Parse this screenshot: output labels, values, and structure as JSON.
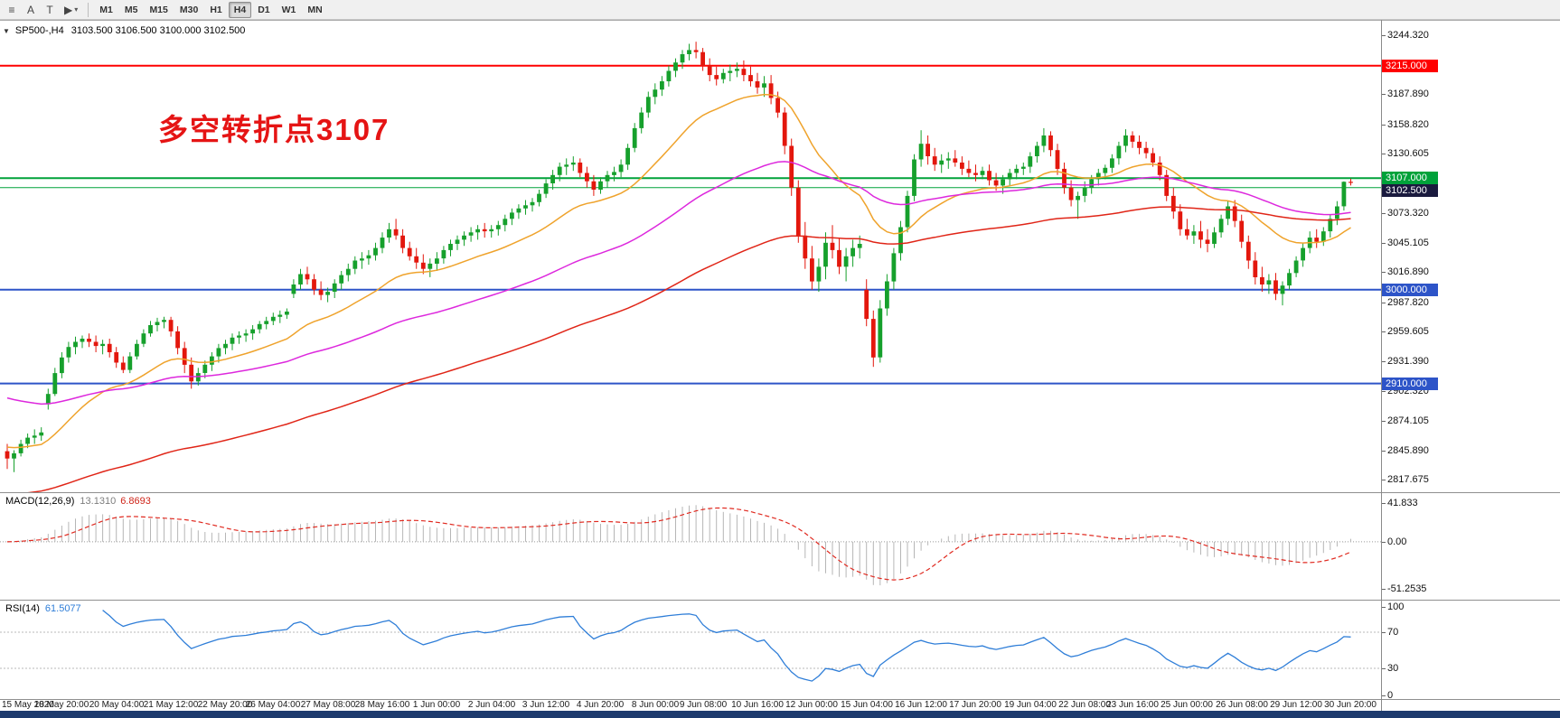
{
  "icons": {
    "expand_arrow": "▼",
    "caret_down": "▾"
  },
  "toolbar": {
    "tools": [
      {
        "name": "chart-menu-icon",
        "glyph": "≡"
      },
      {
        "name": "annotation-tool-icon",
        "glyph": "A"
      },
      {
        "name": "text-tool-icon",
        "glyph": "T"
      },
      {
        "name": "cursor-tool-icon",
        "glyph": "▶",
        "caret": "▾"
      }
    ],
    "timeframes": [
      "M1",
      "M5",
      "M15",
      "M30",
      "H1",
      "H4",
      "D1",
      "W1",
      "MN"
    ],
    "active_timeframe": "H4"
  },
  "chart": {
    "symbol_label": "SP500-,H4",
    "ohlc_label": "3103.500 3106.500 3100.000 3102.500",
    "annotation": {
      "text": "多空转折点3107",
      "color": "#e51414"
    },
    "colors": {
      "bull": "#16a02c",
      "bear": "#e3170d",
      "ma_fast": "#efa32c",
      "ma_mid": "#dd28dd",
      "ma_slow": "#e02517",
      "line_red": "#ff0000",
      "line_green": "#00a23a",
      "line_blue": "#2d54c8",
      "macd_hist": "#b6b6b6",
      "macd_signal": "#e02a20",
      "rsi_line": "#2f7ed8",
      "taskbar": "#1d3a6d"
    },
    "scale": {
      "pmin": 2810,
      "pmax": 3252
    },
    "hlines": [
      {
        "price": 3215.0,
        "color": "#ff0000",
        "w": 2
      },
      {
        "price": 3107.0,
        "color": "#00a23a",
        "w": 2
      },
      {
        "price": 3098.0,
        "color": "#00a23a",
        "w": 1
      },
      {
        "price": 3000.0,
        "color": "#2d54c8",
        "w": 2
      },
      {
        "price": 2910.0,
        "color": "#2d54c8",
        "w": 2
      }
    ],
    "price_axis": {
      "labels": [
        "3244.320",
        "3187.890",
        "3158.820",
        "3130.605",
        "3073.320",
        "3045.105",
        "3016.890",
        "2987.820",
        "2959.605",
        "2931.390",
        "2902.320",
        "2874.105",
        "2845.890",
        "2817.675"
      ],
      "tags": [
        {
          "text": "3215.000",
          "price": 3215.0,
          "bg": "#ff0000"
        },
        {
          "text": "3107.000",
          "price": 3107.0,
          "bg": "#00a23a"
        },
        {
          "text": "3102.500",
          "price": 3102.5,
          "bg": "#1a1a3e"
        },
        {
          "text": "3000.000",
          "price": 3000.0,
          "bg": "#2d54c8"
        },
        {
          "text": "2910.000",
          "price": 2910.0,
          "bg": "#2d54c8"
        }
      ]
    },
    "mas": [
      {
        "period": 22,
        "seed": 2850,
        "color": "#efa32c"
      },
      {
        "period": 64,
        "seed": 2898,
        "color": "#dd28dd"
      },
      {
        "period": 120,
        "seed": 2802,
        "color": "#e02517"
      }
    ]
  },
  "macd": {
    "label": "MACD(12,26,9)",
    "value_main": "13.1310",
    "value_signal": "6.8693",
    "axis": [
      "41.833",
      "0.00",
      "-51.2535"
    ],
    "params": {
      "fast": 12,
      "slow": 26,
      "signal": 9
    },
    "scale": {
      "min": -58,
      "max": 46
    }
  },
  "rsi": {
    "label": "RSI(14)",
    "value": "61.5077",
    "period": 14,
    "levels": [
      70,
      30
    ],
    "axis": [
      "100",
      "70",
      "30",
      "0"
    ]
  },
  "chart_data": {
    "type": "candlestick",
    "symbol": "SP500-",
    "timeframe": "H4",
    "current_bar": {
      "open": 3103.5,
      "high": 3106.5,
      "low": 3100.0,
      "close": 3102.5
    },
    "key_levels": [
      3215.0,
      3107.0,
      3000.0,
      2910.0
    ],
    "time_labels": [
      "15 May 2020",
      "18 May 20:00",
      "20 May 04:00",
      "21 May 12:00",
      "22 May 20:00",
      "26 May 04:00",
      "27 May 08:00",
      "28 May 16:00",
      "1 Jun 00:00",
      "2 Jun 04:00",
      "3 Jun 12:00",
      "4 Jun 20:00",
      "8 Jun 00:00",
      "9 Jun 08:00",
      "10 Jun 16:00",
      "12 Jun 00:00",
      "15 Jun 04:00",
      "16 Jun 12:00",
      "17 Jun 20:00",
      "19 Jun 04:00",
      "22 Jun 08:00",
      "23 Jun 16:00",
      "25 Jun 00:00",
      "26 Jun 08:00",
      "29 Jun 12:00",
      "30 Jun 20:00"
    ],
    "candles_ohlc": [
      [
        2845,
        2852,
        2828,
        2838
      ],
      [
        2838,
        2846,
        2825,
        2843
      ],
      [
        2843,
        2856,
        2840,
        2852
      ],
      [
        2852,
        2862,
        2848,
        2858
      ],
      [
        2858,
        2866,
        2852,
        2860
      ],
      [
        2860,
        2868,
        2855,
        2863
      ],
      [
        2890,
        2905,
        2885,
        2900
      ],
      [
        2900,
        2925,
        2898,
        2920
      ],
      [
        2920,
        2940,
        2915,
        2935
      ],
      [
        2935,
        2950,
        2930,
        2945
      ],
      [
        2945,
        2955,
        2938,
        2950
      ],
      [
        2950,
        2956,
        2944,
        2953
      ],
      [
        2953,
        2958,
        2945,
        2950
      ],
      [
        2950,
        2956,
        2940,
        2946
      ],
      [
        2946,
        2952,
        2938,
        2948
      ],
      [
        2948,
        2953,
        2935,
        2940
      ],
      [
        2940,
        2945,
        2925,
        2930
      ],
      [
        2930,
        2936,
        2920,
        2923
      ],
      [
        2923,
        2940,
        2920,
        2936
      ],
      [
        2936,
        2952,
        2933,
        2948
      ],
      [
        2948,
        2962,
        2945,
        2958
      ],
      [
        2958,
        2970,
        2955,
        2966
      ],
      [
        2966,
        2973,
        2960,
        2969
      ],
      [
        2969,
        2974,
        2963,
        2971
      ],
      [
        2971,
        2974,
        2955,
        2960
      ],
      [
        2960,
        2965,
        2938,
        2944
      ],
      [
        2944,
        2950,
        2920,
        2928
      ],
      [
        2928,
        2935,
        2905,
        2912
      ],
      [
        2912,
        2925,
        2908,
        2920
      ],
      [
        2920,
        2932,
        2915,
        2928
      ],
      [
        2928,
        2940,
        2922,
        2936
      ],
      [
        2936,
        2948,
        2930,
        2944
      ],
      [
        2944,
        2952,
        2938,
        2948
      ],
      [
        2948,
        2958,
        2942,
        2954
      ],
      [
        2954,
        2960,
        2948,
        2956
      ],
      [
        2956,
        2962,
        2950,
        2958
      ],
      [
        2958,
        2966,
        2952,
        2962
      ],
      [
        2962,
        2970,
        2958,
        2967
      ],
      [
        2967,
        2974,
        2962,
        2970
      ],
      [
        2970,
        2978,
        2966,
        2974
      ],
      [
        2974,
        2980,
        2968,
        2976
      ],
      [
        2976,
        2982,
        2972,
        2979
      ],
      [
        2996,
        3010,
        2992,
        3005
      ],
      [
        3005,
        3020,
        3000,
        3015
      ],
      [
        3015,
        3022,
        3005,
        3010
      ],
      [
        3010,
        3015,
        2995,
        3000
      ],
      [
        3000,
        3008,
        2990,
        2995
      ],
      [
        2995,
        3002,
        2988,
        2998
      ],
      [
        2998,
        3010,
        2992,
        3006
      ],
      [
        3006,
        3018,
        3000,
        3014
      ],
      [
        3014,
        3025,
        3008,
        3020
      ],
      [
        3020,
        3032,
        3015,
        3028
      ],
      [
        3028,
        3036,
        3020,
        3030
      ],
      [
        3030,
        3038,
        3024,
        3033
      ],
      [
        3033,
        3045,
        3028,
        3040
      ],
      [
        3040,
        3055,
        3035,
        3050
      ],
      [
        3050,
        3064,
        3045,
        3058
      ],
      [
        3058,
        3068,
        3048,
        3052
      ],
      [
        3052,
        3058,
        3035,
        3040
      ],
      [
        3040,
        3046,
        3028,
        3032
      ],
      [
        3032,
        3040,
        3020,
        3026
      ],
      [
        3026,
        3034,
        3015,
        3020
      ],
      [
        3020,
        3030,
        3012,
        3025
      ],
      [
        3025,
        3036,
        3018,
        3030
      ],
      [
        3030,
        3042,
        3025,
        3038
      ],
      [
        3038,
        3048,
        3032,
        3044
      ],
      [
        3044,
        3052,
        3038,
        3048
      ],
      [
        3048,
        3056,
        3042,
        3052
      ],
      [
        3052,
        3060,
        3046,
        3055
      ],
      [
        3055,
        3062,
        3048,
        3058
      ],
      [
        3058,
        3064,
        3050,
        3056
      ],
      [
        3056,
        3062,
        3050,
        3058
      ],
      [
        3058,
        3066,
        3052,
        3062
      ],
      [
        3062,
        3072,
        3056,
        3068
      ],
      [
        3068,
        3078,
        3062,
        3074
      ],
      [
        3074,
        3082,
        3068,
        3078
      ],
      [
        3078,
        3086,
        3072,
        3081
      ],
      [
        3081,
        3088,
        3075,
        3084
      ],
      [
        3084,
        3096,
        3080,
        3092
      ],
      [
        3092,
        3106,
        3088,
        3102
      ],
      [
        3102,
        3115,
        3096,
        3110
      ],
      [
        3110,
        3122,
        3104,
        3118
      ],
      [
        3118,
        3126,
        3110,
        3120
      ],
      [
        3120,
        3128,
        3114,
        3122
      ],
      [
        3122,
        3126,
        3108,
        3112
      ],
      [
        3112,
        3118,
        3098,
        3104
      ],
      [
        3104,
        3110,
        3090,
        3096
      ],
      [
        3096,
        3108,
        3092,
        3104
      ],
      [
        3104,
        3114,
        3098,
        3110
      ],
      [
        3110,
        3118,
        3104,
        3113
      ],
      [
        3113,
        3125,
        3108,
        3120
      ],
      [
        3120,
        3140,
        3115,
        3136
      ],
      [
        3136,
        3160,
        3132,
        3155
      ],
      [
        3155,
        3175,
        3150,
        3170
      ],
      [
        3170,
        3190,
        3165,
        3185
      ],
      [
        3185,
        3198,
        3178,
        3192
      ],
      [
        3192,
        3205,
        3186,
        3200
      ],
      [
        3200,
        3215,
        3195,
        3210
      ],
      [
        3210,
        3222,
        3204,
        3218
      ],
      [
        3218,
        3230,
        3212,
        3226
      ],
      [
        3226,
        3236,
        3220,
        3230
      ],
      [
        3230,
        3238,
        3222,
        3228
      ],
      [
        3228,
        3232,
        3210,
        3215
      ],
      [
        3215,
        3222,
        3200,
        3206
      ],
      [
        3206,
        3214,
        3196,
        3202
      ],
      [
        3202,
        3212,
        3198,
        3208
      ],
      [
        3208,
        3216,
        3200,
        3210
      ],
      [
        3210,
        3218,
        3204,
        3212
      ],
      [
        3212,
        3220,
        3200,
        3206
      ],
      [
        3206,
        3214,
        3195,
        3200
      ],
      [
        3200,
        3208,
        3188,
        3194
      ],
      [
        3194,
        3205,
        3185,
        3198
      ],
      [
        3198,
        3206,
        3178,
        3184
      ],
      [
        3184,
        3190,
        3165,
        3170
      ],
      [
        3170,
        3175,
        3130,
        3138
      ],
      [
        3138,
        3145,
        3090,
        3098
      ],
      [
        3098,
        3105,
        3045,
        3052
      ],
      [
        3052,
        3065,
        3020,
        3030
      ],
      [
        3030,
        3042,
        3000,
        3008
      ],
      [
        3008,
        3030,
        2998,
        3022
      ],
      [
        3022,
        3055,
        3010,
        3045
      ],
      [
        3045,
        3062,
        3030,
        3038
      ],
      [
        3038,
        3050,
        3015,
        3022
      ],
      [
        3022,
        3040,
        3008,
        3032
      ],
      [
        3032,
        3048,
        3022,
        3040
      ],
      [
        3040,
        3052,
        3030,
        3044
      ],
      [
        3000,
        3010,
        2965,
        2972
      ],
      [
        2972,
        2980,
        2926,
        2935
      ],
      [
        2935,
        2990,
        2930,
        2982
      ],
      [
        2982,
        3015,
        2975,
        3008
      ],
      [
        3008,
        3040,
        3000,
        3035
      ],
      [
        3035,
        3066,
        3028,
        3060
      ],
      [
        3060,
        3095,
        3055,
        3090
      ],
      [
        3090,
        3130,
        3085,
        3125
      ],
      [
        3125,
        3153,
        3118,
        3140
      ],
      [
        3140,
        3148,
        3120,
        3128
      ],
      [
        3128,
        3136,
        3114,
        3120
      ],
      [
        3120,
        3130,
        3112,
        3124
      ],
      [
        3124,
        3132,
        3116,
        3126
      ],
      [
        3126,
        3134,
        3118,
        3122
      ],
      [
        3122,
        3128,
        3110,
        3116
      ],
      [
        3116,
        3124,
        3108,
        3112
      ],
      [
        3112,
        3120,
        3104,
        3110
      ],
      [
        3110,
        3118,
        3106,
        3114
      ],
      [
        3114,
        3120,
        3100,
        3105
      ],
      [
        3105,
        3112,
        3095,
        3100
      ],
      [
        3100,
        3110,
        3092,
        3106
      ],
      [
        3106,
        3116,
        3100,
        3112
      ],
      [
        3112,
        3120,
        3106,
        3116
      ],
      [
        3116,
        3122,
        3110,
        3118
      ],
      [
        3118,
        3132,
        3112,
        3128
      ],
      [
        3128,
        3142,
        3122,
        3138
      ],
      [
        3138,
        3155,
        3132,
        3148
      ],
      [
        3148,
        3152,
        3128,
        3134
      ],
      [
        3134,
        3140,
        3110,
        3116
      ],
      [
        3116,
        3122,
        3092,
        3098
      ],
      [
        3098,
        3105,
        3080,
        3086
      ],
      [
        3086,
        3094,
        3068,
        3090
      ],
      [
        3090,
        3104,
        3084,
        3098
      ],
      [
        3098,
        3110,
        3092,
        3106
      ],
      [
        3106,
        3116,
        3100,
        3112
      ],
      [
        3112,
        3120,
        3106,
        3117
      ],
      [
        3117,
        3130,
        3112,
        3126
      ],
      [
        3126,
        3142,
        3120,
        3138
      ],
      [
        3138,
        3154,
        3132,
        3148
      ],
      [
        3148,
        3152,
        3136,
        3142
      ],
      [
        3142,
        3148,
        3130,
        3136
      ],
      [
        3136,
        3142,
        3126,
        3131
      ],
      [
        3131,
        3136,
        3118,
        3122
      ],
      [
        3122,
        3128,
        3105,
        3110
      ],
      [
        3110,
        3115,
        3085,
        3090
      ],
      [
        3090,
        3098,
        3068,
        3075
      ],
      [
        3075,
        3082,
        3052,
        3058
      ],
      [
        3058,
        3068,
        3048,
        3052
      ],
      [
        3052,
        3062,
        3044,
        3056
      ],
      [
        3056,
        3066,
        3040,
        3048
      ],
      [
        3048,
        3058,
        3036,
        3044
      ],
      [
        3044,
        3060,
        3040,
        3055
      ],
      [
        3055,
        3072,
        3050,
        3068
      ],
      [
        3068,
        3085,
        3062,
        3080
      ],
      [
        3080,
        3086,
        3060,
        3066
      ],
      [
        3066,
        3072,
        3040,
        3046
      ],
      [
        3046,
        3052,
        3020,
        3028
      ],
      [
        3028,
        3036,
        3005,
        3012
      ],
      [
        3012,
        3022,
        2998,
        3005
      ],
      [
        3005,
        3015,
        2996,
        3009
      ],
      [
        3009,
        3016,
        2990,
        2996
      ],
      [
        2996,
        3008,
        2985,
        3004
      ],
      [
        3004,
        3020,
        3000,
        3016
      ],
      [
        3016,
        3032,
        3012,
        3028
      ],
      [
        3028,
        3045,
        3022,
        3040
      ],
      [
        3040,
        3056,
        3035,
        3050
      ],
      [
        3050,
        3058,
        3040,
        3046
      ],
      [
        3046,
        3060,
        3042,
        3056
      ],
      [
        3056,
        3072,
        3050,
        3068
      ],
      [
        3068,
        3085,
        3062,
        3080
      ],
      [
        3080,
        3104,
        3076,
        3103.5
      ],
      [
        3103.5,
        3106.5,
        3100,
        3102.5
      ]
    ]
  }
}
